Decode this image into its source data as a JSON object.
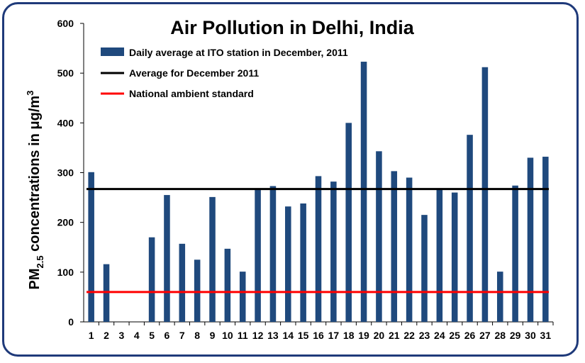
{
  "chart_data": {
    "type": "bar",
    "title": "Air Pollution in Delhi, India",
    "ylabel": {
      "main": "PM",
      "sub": "2.5",
      "rest": " concentrations in μg/m",
      "sup": "3"
    },
    "xlabel": "",
    "ylim": [
      0,
      600
    ],
    "yticks": [
      "0",
      "100",
      "200",
      "300",
      "400",
      "500",
      "600"
    ],
    "categories": [
      "1",
      "2",
      "3",
      "4",
      "5",
      "6",
      "7",
      "8",
      "9",
      "10",
      "11",
      "12",
      "13",
      "14",
      "15",
      "16",
      "17",
      "18",
      "19",
      "20",
      "21",
      "22",
      "23",
      "24",
      "25",
      "26",
      "27",
      "28",
      "29",
      "30",
      "31"
    ],
    "series": [
      {
        "name": "Daily average at ITO station in December, 2011",
        "color": "#1f497d",
        "values": [
          301,
          116,
          null,
          null,
          170,
          255,
          157,
          125,
          251,
          147,
          101,
          266,
          273,
          232,
          238,
          293,
          282,
          400,
          523,
          343,
          303,
          290,
          215,
          268,
          260,
          376,
          512,
          101,
          274,
          330,
          332
        ]
      }
    ],
    "reference_lines": [
      {
        "name": "Average for December 2011",
        "value": 267,
        "color": "#000000"
      },
      {
        "name": "National ambient standard",
        "value": 60,
        "color": "#ff0000"
      }
    ],
    "legend_position": "top-left",
    "grid": false
  }
}
